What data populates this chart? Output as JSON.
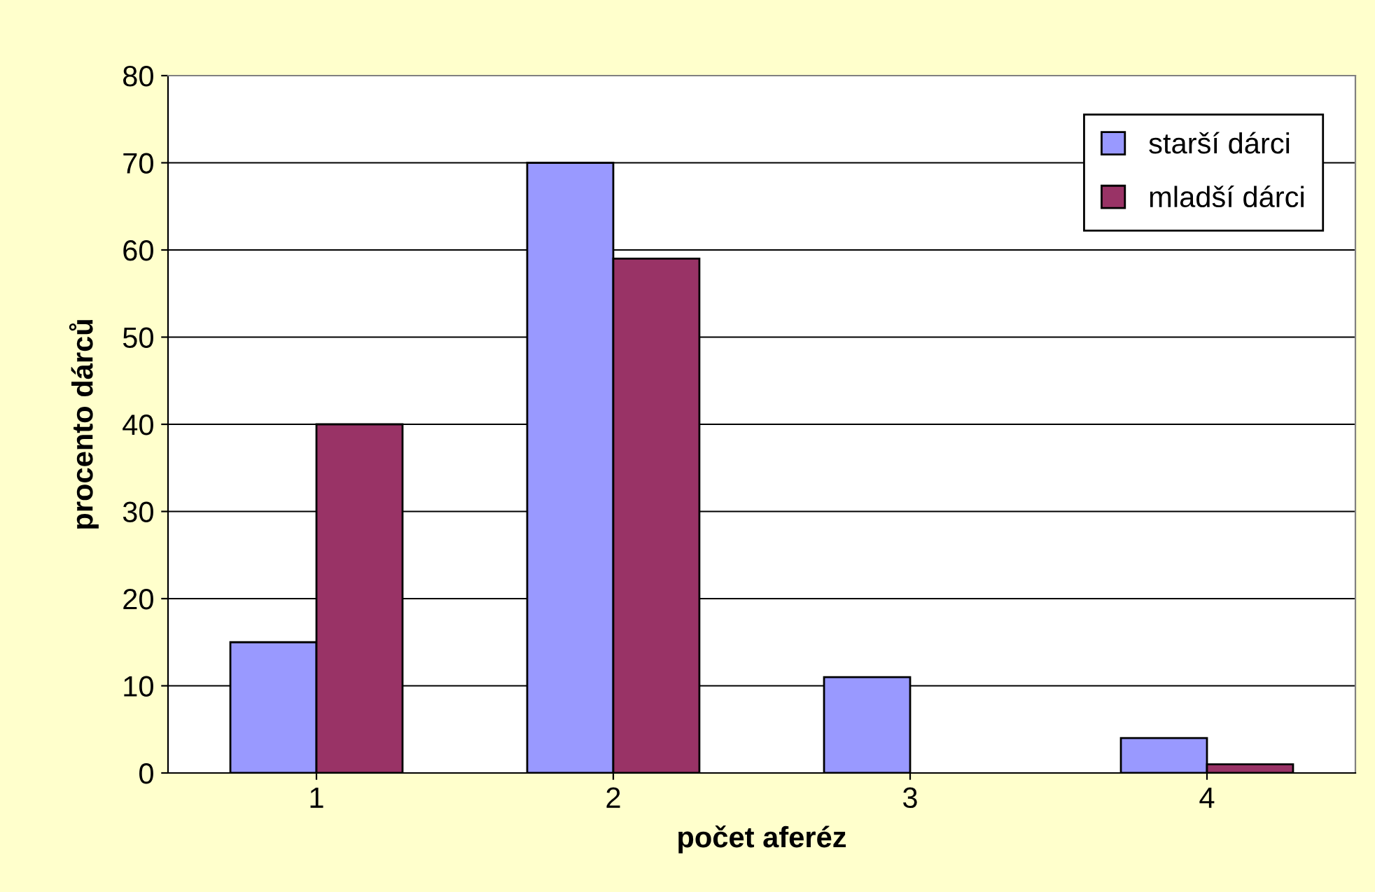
{
  "chart_data": {
    "type": "bar",
    "xlabel": "počet aferéz",
    "ylabel": "procento dárců",
    "categories": [
      "1",
      "2",
      "3",
      "4"
    ],
    "series": [
      {
        "name": "starší dárci",
        "color": "#9999ff",
        "values": [
          15,
          70,
          11,
          4
        ]
      },
      {
        "name": "mladší dárci",
        "color": "#993366",
        "values": [
          40,
          59,
          null,
          1
        ]
      }
    ],
    "ylim": [
      0,
      80
    ],
    "yticks": [
      0,
      10,
      20,
      30,
      40,
      50,
      60,
      70,
      80
    ],
    "grid": "y",
    "legend": "top right"
  }
}
